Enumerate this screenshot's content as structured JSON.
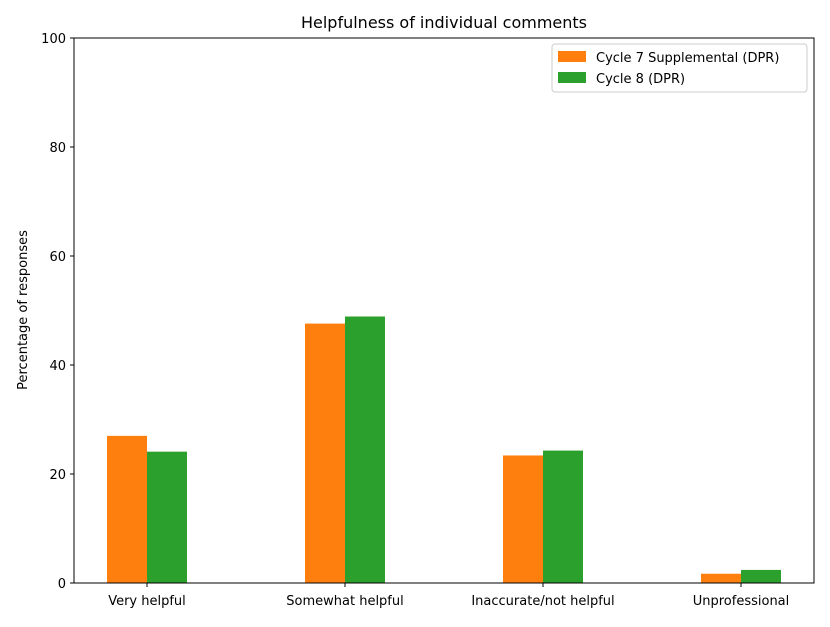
{
  "chart_data": {
    "type": "bar",
    "title": "Helpfulness of individual comments",
    "xlabel": "",
    "ylabel": "Percentage of responses",
    "ylim": [
      0,
      100
    ],
    "yticks": [
      0,
      20,
      40,
      60,
      80,
      100
    ],
    "categories": [
      "Very helpful",
      "Somewhat helpful",
      "Inaccurate/not helpful",
      "Unprofessional"
    ],
    "series": [
      {
        "name": "Cycle 7 Supplemental (DPR)",
        "color": "#ff7f0e",
        "values": [
          27.0,
          47.6,
          23.4,
          1.7
        ]
      },
      {
        "name": "Cycle 8 (DPR)",
        "color": "#2ca02c",
        "values": [
          24.1,
          48.9,
          24.3,
          2.4
        ]
      }
    ],
    "legend_position": "top-right",
    "grid": false
  }
}
